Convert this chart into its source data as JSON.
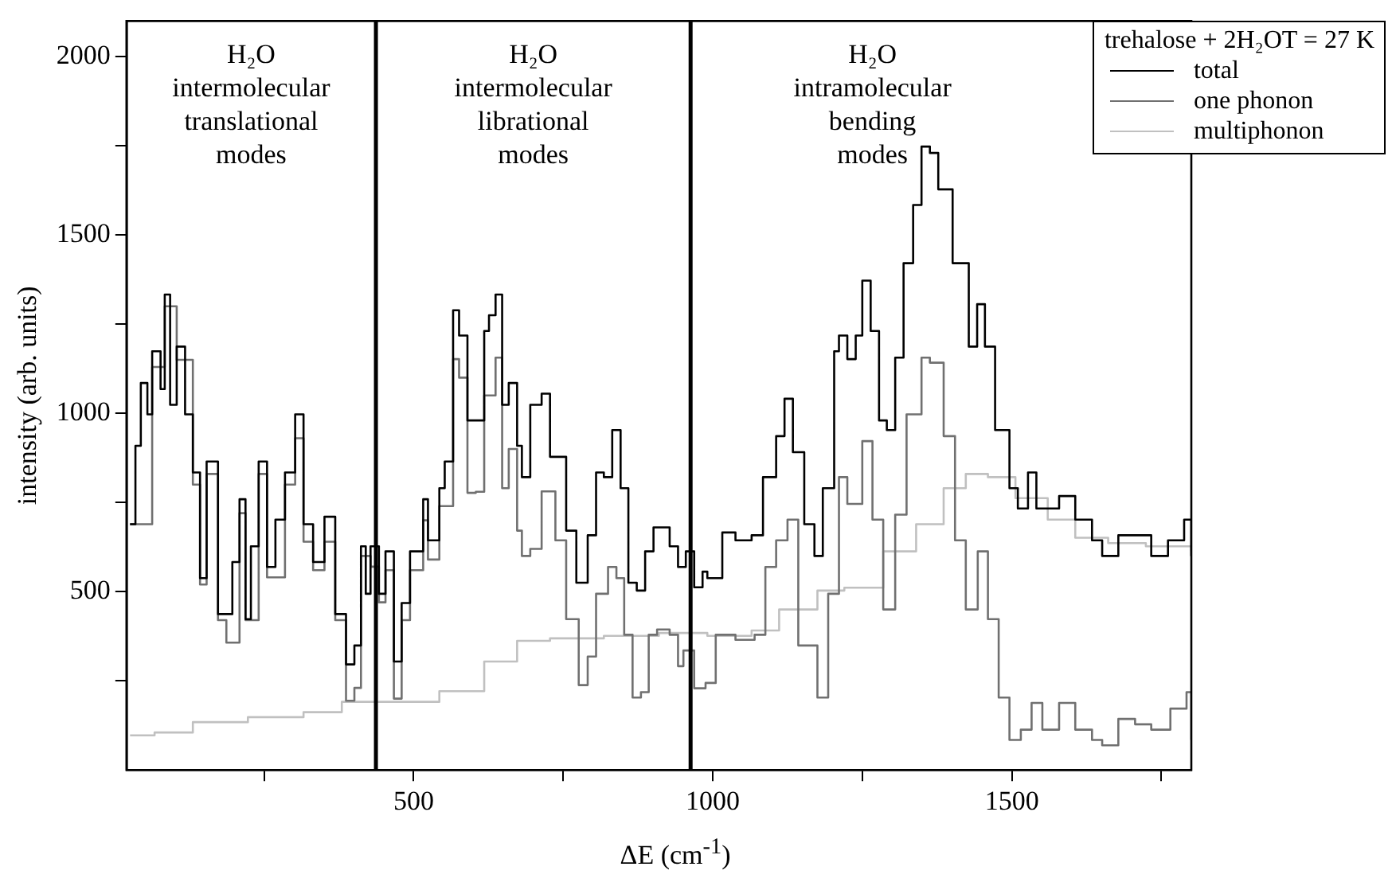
{
  "chart_data": {
    "type": "step",
    "xlabel": "ΔE (cm$^{-1}$)",
    "ylabel": "intensity (arb. units)",
    "legend_title": "trehalose + 2H₂OT = 27 K",
    "xlim": [
      20,
      1800
    ],
    "xticks": [
      {
        "value": 250,
        "label": null
      },
      500,
      {
        "value": 750,
        "label": null
      },
      1000,
      {
        "value": 1250,
        "label": null
      },
      1500,
      {
        "value": 1750,
        "label": null
      }
    ],
    "ylim": [
      0,
      2100
    ],
    "yticks": [
      {
        "value": 250,
        "label": null
      },
      500,
      {
        "value": 750,
        "label": null
      },
      1000,
      {
        "value": 1250,
        "label": null
      },
      1500,
      {
        "value": 1750,
        "label": null
      },
      2000
    ],
    "grid": false,
    "legend": "top right",
    "line_style": "solid",
    "marker": "none",
    "ref_lines": [
      {
        "axis": "x",
        "value": 437,
        "color": "#000000"
      },
      {
        "axis": "x",
        "value": 963,
        "color": "#000000"
      }
    ],
    "annotations": [
      "H₂O\nintermolecular\ntranslational\nmodes",
      "H₂O\nintermolecular\nlibrational\nmodes",
      "H₂O\nintramolecular\nbending\nmodes"
    ],
    "series": [
      {
        "name": "total",
        "color": "#000000",
        "x": [
          26,
          35,
          44,
          55,
          63,
          77,
          84,
          93,
          104,
          118,
          131,
          143,
          154,
          173,
          187,
          197,
          209,
          219,
          228,
          241,
          255,
          269,
          285,
          302,
          316,
          332,
          351,
          369,
          387,
          401,
          412,
          420,
          428,
          442,
          453,
          467,
          480,
          494,
          516,
          524,
          543,
          552,
          566,
          576,
          590,
          604,
          618,
          626,
          637,
          648,
          659,
          673,
          681,
          695,
          714,
          728,
          755,
          772,
          791,
          805,
          818,
          832,
          846,
          859,
          873,
          887,
          901,
          928,
          942,
          955,
          969,
          983,
          991,
          1016,
          1038,
          1065,
          1084,
          1106,
          1120,
          1134,
          1153,
          1170,
          1184,
          1203,
          1211,
          1225,
          1239,
          1250,
          1264,
          1278,
          1291,
          1305,
          1319,
          1335,
          1349,
          1363,
          1377,
          1401,
          1428,
          1442,
          1455,
          1472,
          1496,
          1510,
          1527,
          1541,
          1560,
          1579,
          1606,
          1634,
          1651,
          1678,
          1706,
          1733,
          1761,
          1788,
          1800
        ],
        "values": [
          689,
          909,
          1085,
          997,
          1174,
          1068,
          1333,
          1024,
          1187,
          997,
          834,
          538,
          865,
          437,
          437,
          583,
          759,
          423,
          627,
          865,
          569,
          702,
          834,
          997,
          689,
          583,
          710,
          437,
          296,
          349,
          627,
          494,
          627,
          494,
          613,
          304,
          468,
          613,
          759,
          644,
          790,
          865,
          1289,
          1218,
          980,
          980,
          1231,
          1275,
          1333,
          1024,
          1085,
          909,
          821,
          1024,
          1055,
          878,
          671,
          525,
          658,
          834,
          821,
          953,
          790,
          525,
          503,
          613,
          680,
          627,
          569,
          613,
          512,
          556,
          538,
          666,
          644,
          658,
          821,
          936,
          1041,
          891,
          689,
          600,
          790,
          1174,
          1218,
          1152,
          1218,
          1372,
          1231,
          980,
          953,
          1156,
          1421,
          1584,
          1748,
          1730,
          1628,
          1421,
          1187,
          1306,
          1187,
          953,
          790,
          733,
          834,
          733,
          733,
          768,
          702,
          644,
          600,
          658,
          658,
          600,
          644,
          702,
          600
        ]
      },
      {
        "name": "one phonon",
        "color": "#707070",
        "x": [
          26,
          63,
          84,
          104,
          131,
          143,
          154,
          173,
          187,
          209,
          219,
          241,
          255,
          285,
          302,
          316,
          332,
          351,
          369,
          387,
          401,
          412,
          428,
          442,
          453,
          467,
          480,
          494,
          516,
          524,
          543,
          566,
          576,
          590,
          604,
          618,
          637,
          648,
          659,
          673,
          681,
          695,
          714,
          737,
          755,
          776,
          791,
          805,
          825,
          839,
          852,
          866,
          880,
          893,
          907,
          928,
          942,
          951,
          969,
          988,
          1005,
          1038,
          1070,
          1088,
          1106,
          1125,
          1143,
          1175,
          1193,
          1211,
          1225,
          1250,
          1267,
          1285,
          1305,
          1324,
          1349,
          1363,
          1386,
          1405,
          1423,
          1443,
          1460,
          1478,
          1496,
          1515,
          1533,
          1551,
          1579,
          1606,
          1634,
          1651,
          1678,
          1706,
          1733,
          1765,
          1792,
          1800
        ],
        "values": [
          689,
          1130,
          1300,
          1150,
          800,
          520,
          830,
          420,
          357,
          720,
          420,
          830,
          540,
          800,
          930,
          640,
          560,
          640,
          420,
          194,
          230,
          600,
          570,
          470,
          560,
          200,
          420,
          560,
          700,
          590,
          740,
          1152,
          1100,
          777,
          780,
          1050,
          1156,
          790,
          900,
          671,
          600,
          620,
          781,
          644,
          423,
          238,
          318,
          494,
          569,
          538,
          379,
          203,
          218,
          379,
          394,
          379,
          291,
          335,
          229,
          244,
          379,
          365,
          379,
          569,
          644,
          702,
          349,
          203,
          494,
          821,
          746,
          922,
          702,
          450,
          716,
          997,
          1156,
          1142,
          936,
          644,
          450,
          613,
          423,
          203,
          84,
          113,
          188,
          113,
          188,
          113,
          84,
          69,
          143,
          128,
          113,
          172,
          218,
          84
        ]
      },
      {
        "name": "multiphonon",
        "color": "#c0c0c0",
        "x": [
          26,
          67,
          131,
          223,
          316,
          380,
          463,
          543,
          618,
          673,
          728,
          818,
          910,
          991,
          1065,
          1111,
          1175,
          1220,
          1285,
          1340,
          1386,
          1423,
          1460,
          1506,
          1560,
          1606,
          1661,
          1724,
          1800
        ],
        "values": [
          97,
          105,
          134,
          148,
          162,
          191,
          191,
          221,
          304,
          362,
          369,
          376,
          384,
          376,
          391,
          450,
          503,
          511,
          613,
          689,
          790,
          830,
          821,
          762,
          702,
          651,
          636,
          627,
          613
        ]
      }
    ]
  }
}
